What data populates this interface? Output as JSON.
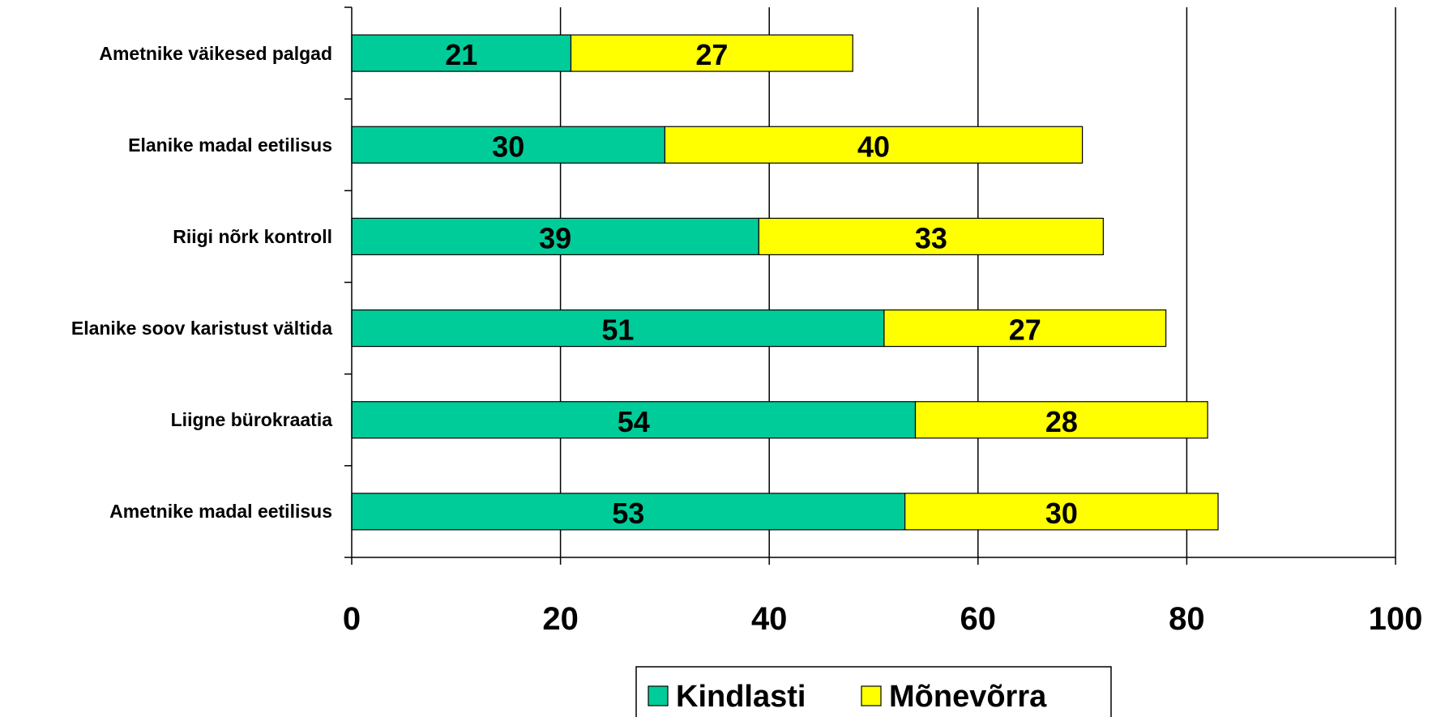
{
  "chart_data": {
    "type": "stacked_bar_horizontal",
    "categories": [
      "Ametnike väikesed palgad",
      "Elanike madal eetilisus",
      "Riigi nõrk kontroll",
      "Elanike soov karistust vältida",
      "Liigne bürokraatia",
      "Ametnike madal eetilisus"
    ],
    "series": [
      {
        "name": "Kindlasti",
        "color": "#00cc99",
        "values": [
          21,
          30,
          39,
          51,
          54,
          53
        ]
      },
      {
        "name": "Mõnevõrra",
        "color": "#ffff00",
        "values": [
          27,
          40,
          33,
          27,
          28,
          30
        ]
      }
    ],
    "xlim": [
      0,
      100
    ],
    "xticks": [
      0,
      20,
      40,
      60,
      80,
      100
    ],
    "grid": true,
    "legend": "bottom"
  }
}
